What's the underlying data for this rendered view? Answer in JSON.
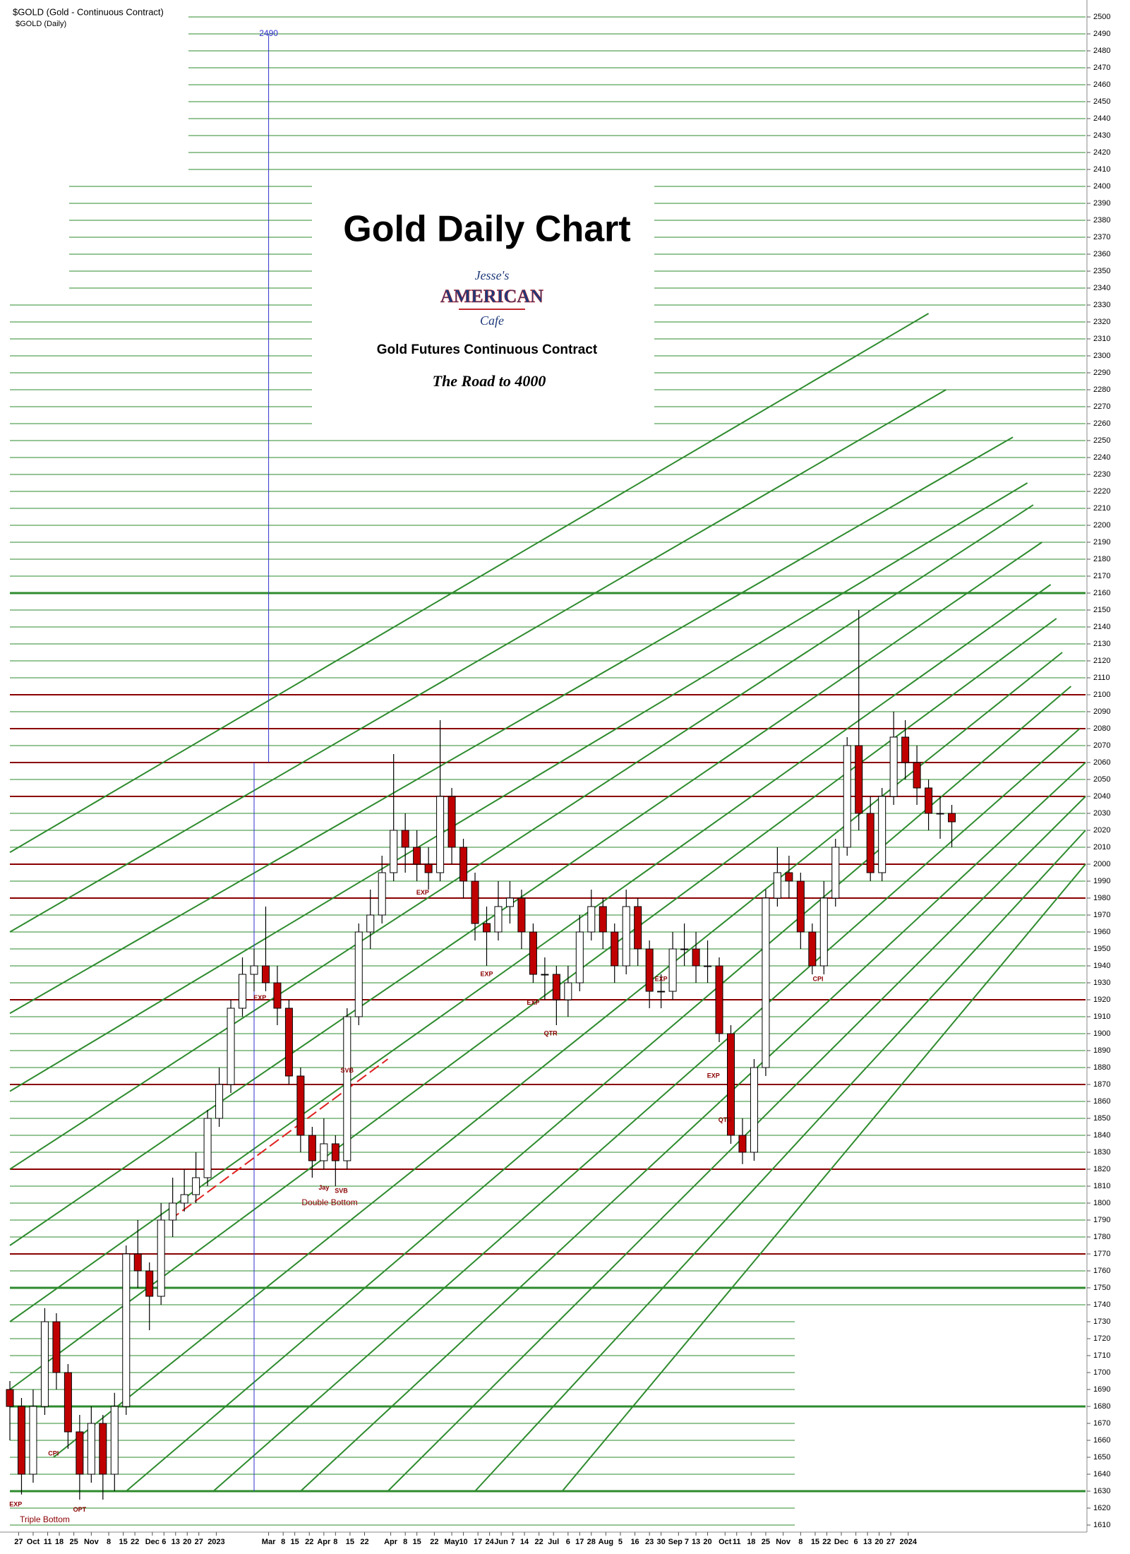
{
  "chart_data": {
    "type": "candlestick",
    "title": "Gold Daily Chart",
    "subtitle": "Gold Futures Continuous Contract",
    "tagline": "The Road to 4000",
    "symbol": "$GOLD (Gold - Continuous Contract)",
    "symbol_period": "$GOLD (Daily)",
    "logo": [
      "Jesse's",
      "AMERICAN",
      "Cafe"
    ],
    "x": [
      0,
      4,
      8,
      12,
      16,
      20,
      24,
      28,
      32,
      36,
      40,
      44,
      48,
      52,
      56,
      60,
      64,
      68,
      72,
      76,
      80,
      84,
      88,
      92,
      96,
      100,
      104,
      108,
      112,
      116,
      120,
      124,
      128,
      132,
      136,
      140,
      144,
      148,
      152,
      156,
      160,
      164,
      168,
      172,
      176,
      180,
      184,
      188,
      192,
      196,
      200,
      204,
      208,
      212,
      216,
      220,
      224,
      228,
      232,
      236,
      240,
      244,
      248,
      252,
      256,
      260,
      264,
      268,
      272,
      276,
      280,
      284,
      288,
      292,
      296,
      300,
      304,
      308,
      312,
      316,
      320,
      324
    ],
    "open": [
      1690,
      1680,
      1640,
      1680,
      1730,
      1700,
      1665,
      1640,
      1670,
      1640,
      1680,
      1770,
      1760,
      1745,
      1790,
      1800,
      1805,
      1815,
      1850,
      1870,
      1915,
      1935,
      1940,
      1930,
      1915,
      1875,
      1840,
      1825,
      1835,
      1825,
      1910,
      1960,
      1970,
      1995,
      2020,
      2010,
      2000,
      1995,
      2040,
      2010,
      1990,
      1965,
      1960,
      1975,
      1980,
      1960,
      1935,
      1935,
      1920,
      1930,
      1960,
      1975,
      1960,
      1940,
      1975,
      1950,
      1925,
      1925,
      1950,
      1950,
      1940,
      1940,
      1900,
      1840,
      1830,
      1880,
      1980,
      1995,
      1990,
      1960,
      1940,
      1980,
      2010,
      2070,
      2030,
      1995,
      2040,
      2075,
      2060,
      2045,
      2030,
      2030
    ],
    "high": [
      1695,
      1685,
      1690,
      1738,
      1735,
      1705,
      1675,
      1680,
      1675,
      1688,
      1775,
      1790,
      1765,
      1800,
      1815,
      1820,
      1830,
      1855,
      1880,
      1920,
      1945,
      1950,
      1975,
      1940,
      1920,
      1880,
      1845,
      1850,
      1840,
      1915,
      1965,
      1985,
      2005,
      2065,
      2030,
      2020,
      2010,
      2085,
      2045,
      2015,
      1995,
      1975,
      1990,
      1990,
      1985,
      1965,
      1945,
      1940,
      1940,
      1970,
      1985,
      1980,
      1965,
      1985,
      1980,
      1955,
      1935,
      1960,
      1965,
      1960,
      1955,
      1945,
      1905,
      1850,
      1885,
      1985,
      2010,
      2005,
      1995,
      1965,
      1990,
      2015,
      2075,
      2150,
      2040,
      2045,
      2090,
      2085,
      2070,
      2050,
      2040,
      2035
    ],
    "low": [
      1660,
      1628,
      1635,
      1675,
      1690,
      1655,
      1625,
      1635,
      1625,
      1630,
      1675,
      1750,
      1725,
      1740,
      1780,
      1795,
      1800,
      1810,
      1845,
      1865,
      1910,
      1925,
      1925,
      1905,
      1870,
      1830,
      1815,
      1820,
      1810,
      1820,
      1905,
      1950,
      1965,
      1990,
      1995,
      1990,
      1985,
      1990,
      2000,
      1980,
      1955,
      1940,
      1955,
      1965,
      1950,
      1930,
      1920,
      1905,
      1910,
      1925,
      1955,
      1950,
      1930,
      1935,
      1940,
      1915,
      1915,
      1920,
      1940,
      1930,
      1930,
      1895,
      1835,
      1823,
      1825,
      1875,
      1975,
      1980,
      1950,
      1935,
      1935,
      1975,
      2005,
      2020,
      1990,
      1990,
      2035,
      2050,
      2035,
      2020,
      2015,
      2010
    ],
    "close": [
      1680,
      1640,
      1680,
      1730,
      1700,
      1665,
      1640,
      1670,
      1640,
      1680,
      1770,
      1760,
      1745,
      1790,
      1800,
      1805,
      1815,
      1850,
      1870,
      1915,
      1935,
      1940,
      1930,
      1915,
      1875,
      1840,
      1825,
      1835,
      1825,
      1910,
      1960,
      1970,
      1995,
      2020,
      2010,
      2000,
      1995,
      2040,
      2010,
      1990,
      1965,
      1960,
      1975,
      1980,
      1960,
      1935,
      1935,
      1920,
      1930,
      1960,
      1975,
      1960,
      1940,
      1975,
      1950,
      1925,
      1925,
      1950,
      1950,
      1940,
      1940,
      1900,
      1840,
      1830,
      1880,
      1980,
      1995,
      1990,
      1960,
      1940,
      1980,
      2010,
      2070,
      2030,
      1995,
      2040,
      2075,
      2060,
      2045,
      2030,
      2030,
      2025
    ],
    "up_color": "#ffffff",
    "down_color": "#c00000",
    "xlim": [
      0,
      370
    ],
    "ylim": [
      1595,
      2510
    ],
    "grid": true,
    "grid_color": "#2e8b2e",
    "yticks": [
      1610,
      1620,
      1630,
      1640,
      1650,
      1660,
      1670,
      1680,
      1690,
      1700,
      1710,
      1720,
      1730,
      1740,
      1750,
      1760,
      1770,
      1780,
      1790,
      1800,
      1810,
      1820,
      1830,
      1840,
      1850,
      1860,
      1870,
      1880,
      1890,
      1900,
      1910,
      1920,
      1930,
      1940,
      1950,
      1960,
      1970,
      1980,
      1990,
      2000,
      2010,
      2020,
      2030,
      2040,
      2050,
      2060,
      2070,
      2080,
      2090,
      2100,
      2110,
      2120,
      2130,
      2140,
      2150,
      2160,
      2170,
      2180,
      2190,
      2200,
      2210,
      2220,
      2230,
      2240,
      2250,
      2260,
      2270,
      2280,
      2290,
      2300,
      2310,
      2320,
      2330,
      2340,
      2350,
      2360,
      2370,
      2380,
      2390,
      2400,
      2410,
      2420,
      2430,
      2440,
      2450,
      2460,
      2470,
      2480,
      2490,
      2500
    ],
    "xticks": [
      {
        "value": 3,
        "label": "27"
      },
      {
        "value": 8,
        "label": "Oct"
      },
      {
        "value": 13,
        "label": "11"
      },
      {
        "value": 17,
        "label": "18"
      },
      {
        "value": 22,
        "label": "25"
      },
      {
        "value": 28,
        "label": "Nov"
      },
      {
        "value": 34,
        "label": "8"
      },
      {
        "value": 39,
        "label": "15"
      },
      {
        "value": 43,
        "label": "22"
      },
      {
        "value": 49,
        "label": "Dec"
      },
      {
        "value": 53,
        "label": "6"
      },
      {
        "value": 57,
        "label": "13"
      },
      {
        "value": 61,
        "label": "20"
      },
      {
        "value": 65,
        "label": "27"
      },
      {
        "value": 71,
        "label": "2023"
      },
      {
        "value": 89,
        "label": "Mar"
      },
      {
        "value": 94,
        "label": "8"
      },
      {
        "value": 98,
        "label": "15"
      },
      {
        "value": 103,
        "label": "22"
      },
      {
        "value": 108,
        "label": "Apr"
      },
      {
        "value": 112,
        "label": "8"
      },
      {
        "value": 117,
        "label": "15"
      },
      {
        "value": 122,
        "label": "22"
      },
      {
        "value": 131,
        "label": "Apr"
      },
      {
        "value": 136,
        "label": "8"
      },
      {
        "value": 140,
        "label": "15"
      },
      {
        "value": 146,
        "label": "22"
      },
      {
        "value": 152,
        "label": "May"
      },
      {
        "value": 156,
        "label": "10"
      },
      {
        "value": 161,
        "label": "17"
      },
      {
        "value": 165,
        "label": "24"
      },
      {
        "value": 169,
        "label": "Jun"
      },
      {
        "value": 173,
        "label": "7"
      },
      {
        "value": 177,
        "label": "14"
      },
      {
        "value": 182,
        "label": "22"
      },
      {
        "value": 187,
        "label": "Jul"
      },
      {
        "value": 192,
        "label": "6"
      },
      {
        "value": 196,
        "label": "17"
      },
      {
        "value": 200,
        "label": "28"
      },
      {
        "value": 205,
        "label": "Aug"
      },
      {
        "value": 210,
        "label": "5"
      },
      {
        "value": 215,
        "label": "16"
      },
      {
        "value": 220,
        "label": "23"
      },
      {
        "value": 224,
        "label": "30"
      },
      {
        "value": 230,
        "label": "Sep 7"
      },
      {
        "value": 236,
        "label": "13"
      },
      {
        "value": 240,
        "label": "20"
      },
      {
        "value": 246,
        "label": "Oct"
      },
      {
        "value": 250,
        "label": "11"
      },
      {
        "value": 255,
        "label": "18"
      },
      {
        "value": 260,
        "label": "25"
      },
      {
        "value": 266,
        "label": "Nov"
      },
      {
        "value": 272,
        "label": "8"
      },
      {
        "value": 277,
        "label": "15"
      },
      {
        "value": 281,
        "label": "22"
      },
      {
        "value": 286,
        "label": "Dec"
      },
      {
        "value": 291,
        "label": "6"
      },
      {
        "value": 295,
        "label": "13"
      },
      {
        "value": 299,
        "label": "20"
      },
      {
        "value": 303,
        "label": "27"
      },
      {
        "value": 309,
        "label": "2024"
      }
    ],
    "red_levels": [
      2100,
      2080,
      2060,
      2040,
      2000,
      1980,
      1920,
      1870,
      1820,
      1770
    ],
    "red_color": "#8b0000",
    "green_levels": [
      2160,
      1750,
      1680,
      1630
    ],
    "trendlines": [
      [
        0,
        2007,
        316,
        2325
      ],
      [
        0,
        1960,
        322,
        2280
      ],
      [
        0,
        1912,
        345,
        2252
      ],
      [
        0,
        1866,
        350,
        2225
      ],
      [
        0,
        1820,
        352,
        2212
      ],
      [
        0,
        1775,
        355,
        2190
      ],
      [
        0,
        1730,
        358,
        2165
      ],
      [
        0,
        1690,
        360,
        2145
      ],
      [
        15,
        1650,
        362,
        2125
      ],
      [
        40,
        1630,
        365,
        2105
      ],
      [
        70,
        1630,
        368,
        2080
      ],
      [
        100,
        1630,
        370,
        2060
      ],
      [
        130,
        1630,
        370,
        2040
      ],
      [
        160,
        1630,
        370,
        2020
      ],
      [
        190,
        1630,
        370,
        2000
      ]
    ],
    "red_trendline": [
      55,
      1790,
      130,
      1885
    ],
    "vlines": [
      {
        "x": 84,
        "from": 1630,
        "to": 2060
      },
      {
        "x": 89,
        "from": 2060,
        "to": 2490
      }
    ],
    "vline_color": "#3333cc",
    "annotations": [
      {
        "text": "EXP",
        "x": 2,
        "y": 1622
      },
      {
        "text": "OPT",
        "x": 24,
        "y": 1619
      },
      {
        "text": "Triple Bottom",
        "x": 12,
        "y": 1613
      },
      {
        "text": "CPI",
        "x": 15,
        "y": 1652
      },
      {
        "text": "EXP",
        "x": 86,
        "y": 1921
      },
      {
        "text": "SVB",
        "x": 116,
        "y": 1878
      },
      {
        "text": "Jay",
        "x": 108,
        "y": 1809
      },
      {
        "text": "SVB",
        "x": 114,
        "y": 1807
      },
      {
        "text": "Double Bottom",
        "x": 110,
        "y": 1800
      },
      {
        "text": "EXP",
        "x": 142,
        "y": 1983
      },
      {
        "text": "EXP",
        "x": 164,
        "y": 1935
      },
      {
        "text": "EXP",
        "x": 180,
        "y": 1918
      },
      {
        "text": "QTR",
        "x": 186,
        "y": 1900
      },
      {
        "text": "EXP",
        "x": 224,
        "y": 1932
      },
      {
        "text": "EXP",
        "x": 242,
        "y": 1875
      },
      {
        "text": "QTR",
        "x": 246,
        "y": 1849
      },
      {
        "text": "CPI",
        "x": 278,
        "y": 1932
      }
    ]
  }
}
